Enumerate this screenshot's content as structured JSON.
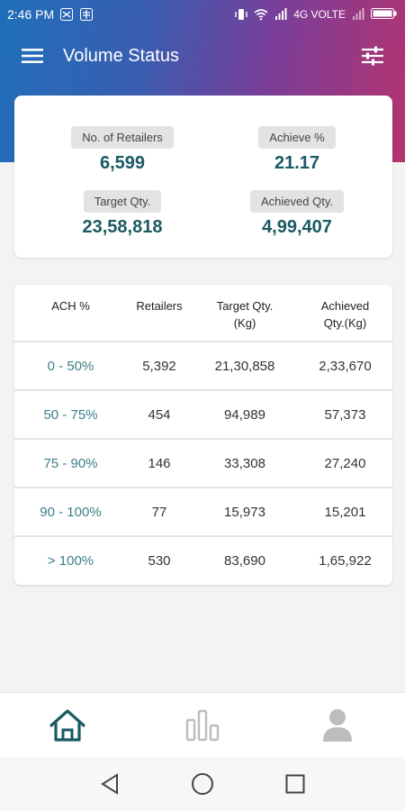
{
  "status_bar": {
    "time": "2:46 PM",
    "network": "4G VOLTE",
    "icons": [
      "vibrate-icon",
      "wifi-icon",
      "signal-icon",
      "battery-icon"
    ]
  },
  "app_bar": {
    "title": "Volume Status",
    "menu_icon": "hamburger-menu-icon",
    "filter_icon": "sliders-filter-icon"
  },
  "summary": {
    "retailers": {
      "label": "No. of Retailers",
      "value": "6,599"
    },
    "achieve_pct": {
      "label": "Achieve %",
      "value": "21.17"
    },
    "target_qty": {
      "label": "Target Qty.",
      "value": "23,58,818"
    },
    "achieved_qty": {
      "label": "Achieved Qty.",
      "value": "4,99,407"
    }
  },
  "table": {
    "headers": {
      "ach": "ACH %",
      "retailers": "Retailers",
      "target_l1": "Target Qty.",
      "target_l2": "(Kg)",
      "achieved_l1": "Achieved",
      "achieved_l2": "Qty.(Kg)"
    },
    "rows": [
      {
        "range": "0 - 50%",
        "retailers": "5,392",
        "target": "21,30,858",
        "achieved": "2,33,670"
      },
      {
        "range": "50 - 75%",
        "retailers": "454",
        "target": "94,989",
        "achieved": "57,373"
      },
      {
        "range": "75 - 90%",
        "retailers": "146",
        "target": "33,308",
        "achieved": "27,240"
      },
      {
        "range": "90 - 100%",
        "retailers": "77",
        "target": "15,973",
        "achieved": "15,201"
      },
      {
        "range": "> 100%",
        "retailers": "530",
        "target": "83,690",
        "achieved": "1,65,922"
      }
    ]
  },
  "bottom_nav": [
    "home-icon",
    "bar-chart-icon",
    "profile-icon"
  ],
  "colors": {
    "accent": "#1a5a63",
    "range_text": "#3a7f86",
    "gradient_start": "#1f6fba",
    "gradient_end": "#b4336e",
    "nav_inactive": "#bdbdbd"
  }
}
